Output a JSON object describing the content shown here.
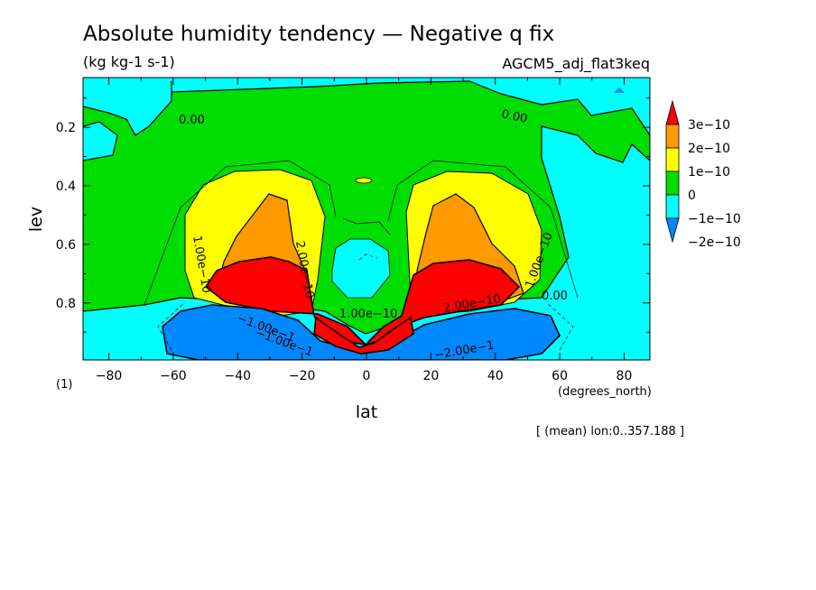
{
  "chart_data": {
    "type": "contour",
    "title": "Absolute humidity tendency — Negative q fix",
    "units": "(kg kg-1 s-1)",
    "experiment": "AGCM5_adj_flat3keq",
    "xlabel": "lat",
    "xunits": "(degrees_north)",
    "ylabel": "lev",
    "panel_label": "(1)",
    "averaging_note": "[ (mean) lon:0..357.188 ]",
    "xlim": [
      -88,
      88
    ],
    "ylim": [
      0.995,
      0.03
    ],
    "x_ticks": [
      -80,
      -60,
      -40,
      -20,
      0,
      20,
      40,
      60,
      80
    ],
    "x_tick_labels": [
      "−80",
      "−60",
      "−40",
      "−20",
      "0",
      "20",
      "40",
      "60",
      "80"
    ],
    "y_ticks": [
      0.2,
      0.4,
      0.6,
      0.8
    ],
    "y_tick_labels": [
      "0.2",
      "0.4",
      "0.6",
      "0.8"
    ],
    "colorbar": {
      "levels": [
        "3e−10",
        "2e−10",
        "1e−10",
        "0",
        "−1e−10",
        "−2e−10"
      ],
      "colors": [
        "#ff0000",
        "#ff9900",
        "#ffff00",
        "#00dd00",
        "#00ffff",
        "#0088ff"
      ]
    },
    "contour_labels": [
      "0.00",
      "0.00",
      "0.00",
      "1.00e−10",
      "2.00e−10",
      "1.00e−10",
      "2.00e−10",
      "1.00e−10",
      "−1.00e−1",
      "−2.00e−1",
      "−1.00e−1"
    ],
    "regions": [
      {
        "name": "south-maximum",
        "level_rgb_index": 0,
        "peak_lat": -30,
        "peak_lev": 0.75
      },
      {
        "name": "north-maximum",
        "level_rgb_index": 0,
        "peak_lat": 30,
        "peak_lev": 0.75
      },
      {
        "name": "near-surface-minimum",
        "level_rgb_index": 5,
        "lat_range": [
          -62,
          62
        ],
        "lev_range": [
          0.85,
          0.99
        ]
      }
    ]
  }
}
